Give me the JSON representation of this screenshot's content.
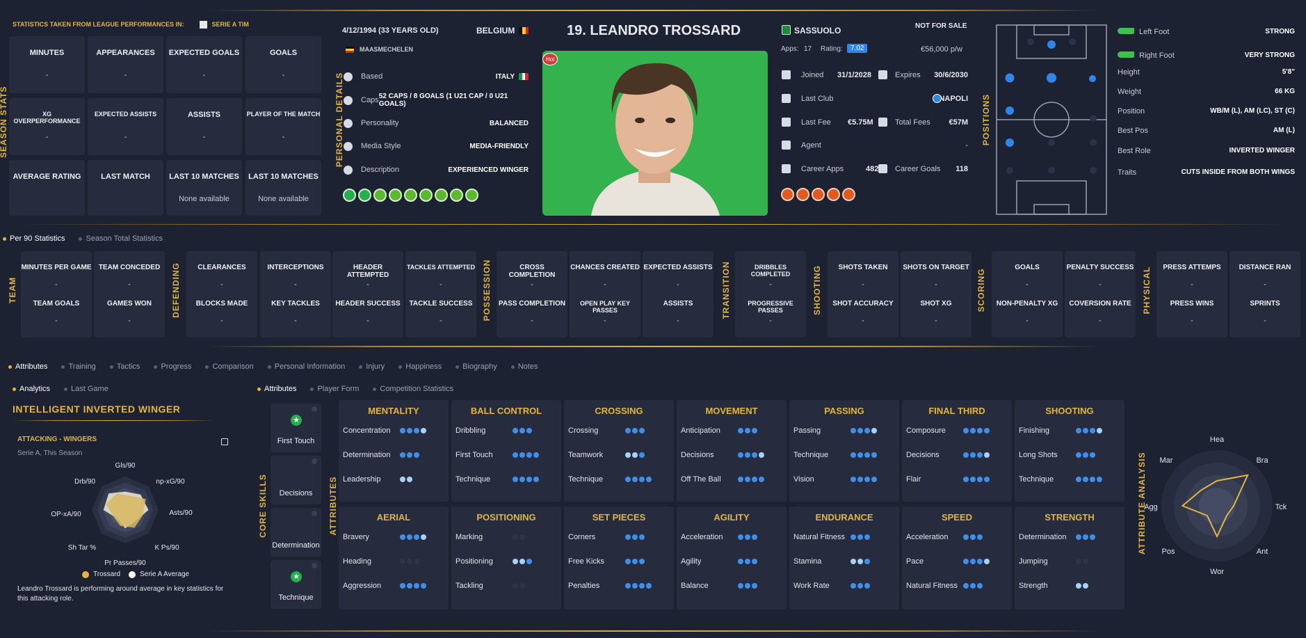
{
  "season": {
    "header": "STATISTICS TAKEN FROM LEAGUE PERFORMANCES IN:",
    "league": "SERIE A TIM",
    "side_label": "SEASON STATS",
    "cards": [
      {
        "title": "MINUTES",
        "value": "-"
      },
      {
        "title": "APPEARANCES",
        "value": "-"
      },
      {
        "title": "EXPECTED GOALS",
        "value": "-"
      },
      {
        "title": "GOALS",
        "value": "-"
      },
      {
        "title": "XG OVERPERFORMANCE",
        "value": "-"
      },
      {
        "title": "EXPECTED ASSISTS",
        "value": "-"
      },
      {
        "title": "ASSISTS",
        "value": "-"
      },
      {
        "title": "PLAYER OF THE MATCH",
        "value": "-"
      },
      {
        "title": "AVERAGE RATING",
        "value": ""
      },
      {
        "title": "LAST MATCH",
        "value": ""
      },
      {
        "title": "LAST 10 MATCHES",
        "value": "None available"
      },
      {
        "title": "LAST 10 MATCHES",
        "value": "None available"
      }
    ]
  },
  "personal": {
    "side_label": "PERSONAL DETAILS",
    "dob": "4/12/1994 (33 YEARS OLD)",
    "nation": "BELGIUM",
    "birthplace": "MAASMECHELEN",
    "rows": [
      {
        "icon": "location-icon",
        "label": "Based",
        "value": "ITALY"
      },
      {
        "icon": "caps-icon",
        "label": "Caps",
        "value": "52 CAPS / 8 GOALS (1 U21 CAP / 0 U21 GOALS)"
      },
      {
        "icon": "personality-icon",
        "label": "Personality",
        "value": "BALANCED"
      },
      {
        "icon": "media-icon",
        "label": "Media Style",
        "value": "MEDIA-FRIENDLY"
      },
      {
        "icon": "description-icon",
        "label": "Description",
        "value": "EXPERIENCED WINGER"
      }
    ]
  },
  "player": {
    "name": "19. LEANDRO TROSSARD",
    "tag": "Hol"
  },
  "club": {
    "name": "SASSUOLO",
    "status": "NOT FOR SALE",
    "apps_label": "Apps:",
    "apps": "17",
    "rating_label": "Rating:",
    "rating": "7.02",
    "wage": "€56,000 p/w",
    "joined_label": "Joined",
    "joined": "31/1/2028",
    "expires_label": "Expires",
    "expires": "30/6/2030",
    "lastclub_label": "Last Club",
    "lastclub": "NAPOLI",
    "lastfee_label": "Last Fee",
    "lastfee": "€5.75M",
    "totalfees_label": "Total Fees",
    "totalfees": "€57M",
    "agent_label": "Agent",
    "agent": "-",
    "careerapps_label": "Career Apps",
    "careerapps": "482",
    "careergoals_label": "Career Goals",
    "careergoals": "118"
  },
  "positions_label": "POSITIONS",
  "foot": [
    {
      "label": "Left Foot",
      "value": "STRONG"
    },
    {
      "label": "Right Foot",
      "value": "VERY STRONG"
    }
  ],
  "info": [
    {
      "label": "Height",
      "value": "5'8\""
    },
    {
      "label": "Weight",
      "value": "66 KG"
    },
    {
      "label": "Position",
      "value": "WB/M (L), AM (LC), ST (C)"
    },
    {
      "label": "Best Pos",
      "value": "AM (L)"
    },
    {
      "label": "Best Role",
      "value": "INVERTED WINGER"
    },
    {
      "label": "Traits",
      "value": "CUTS INSIDE FROM BOTH WINGS"
    }
  ],
  "stats_tabs": [
    "Per 90 Statistics",
    "Season Total Statistics"
  ],
  "stat_groups": [
    {
      "label": "TEAM",
      "cards": [
        [
          "MINUTES PER GAME",
          "TEAM GOALS"
        ],
        [
          "TEAM CONCEDED",
          "GAMES WON"
        ]
      ]
    },
    {
      "label": "DEFENDING",
      "cards": [
        [
          "CLEARANCES",
          "BLOCKS MADE"
        ],
        [
          "INTERCEPTIONS",
          "KEY TACKLES"
        ],
        [
          "HEADER ATTEMPTED",
          "HEADER SUCCESS"
        ],
        [
          "TACKLES ATTEMPTED",
          "TACKLE SUCCESS"
        ]
      ]
    },
    {
      "label": "POSSESSION",
      "cards": [
        [
          "CROSS COMPLETION",
          "PASS COMPLETION"
        ],
        [
          "CHANCES CREATED",
          "OPEN PLAY KEY PASSES"
        ],
        [
          "EXPECTED ASSISTS",
          "ASSISTS"
        ]
      ]
    },
    {
      "label": "TRANSITION",
      "cards": [
        [
          "DRIBBLES COMPLETED",
          "PROGRESSIVE PASSES"
        ]
      ]
    },
    {
      "label": "SHOOTING",
      "cards": [
        [
          "SHOTS TAKEN",
          "SHOT ACCURACY"
        ],
        [
          "SHOTS ON TARGET",
          "SHOT XG"
        ]
      ]
    },
    {
      "label": "SCORING",
      "cards": [
        [
          "GOALS",
          "NON-PENALTY XG"
        ],
        [
          "PENALTY SUCCESS",
          "COVERSION RATE"
        ]
      ]
    },
    {
      "label": "PHYSICAL",
      "cards": [
        [
          "PRESS ATTEMPS",
          "PRESS WINS"
        ],
        [
          "DISTANCE RAN",
          "SPRINTS"
        ]
      ]
    }
  ],
  "stat_dash": "-",
  "main_tabs": [
    "Attributes",
    "Training",
    "Tactics",
    "Progress",
    "Comparison",
    "Personal Information",
    "Injury",
    "Happiness",
    "Biography",
    "Notes"
  ],
  "sub_tabs_left": [
    "Analytics",
    "Last Game"
  ],
  "sub_tabs_right": [
    "Attributes",
    "Player Form",
    "Competition Statistics"
  ],
  "analytics": {
    "role_title": "INTELLIGENT INVERTED WINGER",
    "chart_title": "ATTACKING - WINGERS",
    "chart_sub": "Serie A, This Season",
    "legend_a": "Trossard",
    "legend_b": "Serie A Average",
    "summary": "Leandro Trossard is performing around average in key statistics for this attacking role."
  },
  "core_label": "CORE SKILLS",
  "core_skills": [
    {
      "name": "First Touch",
      "star": true
    },
    {
      "name": "Decisions",
      "star": false
    },
    {
      "name": "Determination",
      "star": false
    },
    {
      "name": "Technique",
      "star": true
    }
  ],
  "attributes_label": "ATTRIBUTES",
  "attr_groups": [
    {
      "title": "MENTALITY",
      "rows": [
        [
          "Concentration",
          [
            2,
            2,
            2,
            1
          ]
        ],
        [
          "Determination",
          [
            2,
            2,
            2
          ]
        ],
        [
          "Leadership",
          [
            1,
            1
          ]
        ]
      ]
    },
    {
      "title": "BALL CONTROL",
      "rows": [
        [
          "Dribbling",
          [
            2,
            2,
            2
          ]
        ],
        [
          "First Touch",
          [
            2,
            2,
            2,
            2
          ]
        ],
        [
          "Technique",
          [
            2,
            2,
            2,
            2
          ]
        ]
      ]
    },
    {
      "title": "CROSSING",
      "rows": [
        [
          "Crossing",
          [
            2,
            2,
            2
          ]
        ],
        [
          "Teamwork",
          [
            1,
            1,
            2
          ]
        ],
        [
          "Technique",
          [
            2,
            2,
            2,
            2
          ]
        ]
      ]
    },
    {
      "title": "MOVEMENT",
      "rows": [
        [
          "Anticipation",
          [
            2,
            2,
            2
          ]
        ],
        [
          "Decisions",
          [
            2,
            2,
            2,
            1
          ]
        ],
        [
          "Off The Ball",
          [
            2,
            2,
            2,
            2
          ]
        ]
      ]
    },
    {
      "title": "PASSING",
      "rows": [
        [
          "Passing",
          [
            2,
            2,
            2,
            1
          ]
        ],
        [
          "Technique",
          [
            2,
            2,
            2,
            2
          ]
        ],
        [
          "Vision",
          [
            2,
            2,
            2,
            2
          ]
        ]
      ]
    },
    {
      "title": "FINAL THIRD",
      "rows": [
        [
          "Composure",
          [
            2,
            2,
            2,
            2
          ]
        ],
        [
          "Decisions",
          [
            2,
            2,
            2,
            1
          ]
        ],
        [
          "Flair",
          [
            2,
            2,
            2,
            2
          ]
        ]
      ]
    },
    {
      "title": "SHOOTING",
      "rows": [
        [
          "Finishing",
          [
            2,
            2,
            2,
            1
          ]
        ],
        [
          "Long Shots",
          [
            2,
            2,
            2
          ]
        ],
        [
          "Technique",
          [
            2,
            2,
            2,
            2
          ]
        ]
      ]
    },
    {
      "title": "AERIAL",
      "rows": [
        [
          "Bravery",
          [
            2,
            2,
            2,
            1
          ]
        ],
        [
          "Heading",
          [
            0,
            0,
            0
          ]
        ],
        [
          "Aggression",
          [
            2,
            2,
            2,
            2
          ]
        ]
      ]
    },
    {
      "title": "POSITIONING",
      "rows": [
        [
          "Marking",
          [
            0,
            0
          ]
        ],
        [
          "Positioning",
          [
            1,
            1,
            2
          ]
        ],
        [
          "Tackling",
          [
            0,
            0
          ]
        ]
      ]
    },
    {
      "title": "SET PIECES",
      "rows": [
        [
          "Corners",
          [
            2,
            2,
            2
          ]
        ],
        [
          "Free Kicks",
          [
            2,
            2,
            2
          ]
        ],
        [
          "Penalties",
          [
            2,
            2,
            2,
            2
          ]
        ]
      ]
    },
    {
      "title": "AGILITY",
      "rows": [
        [
          "Acceleration",
          [
            2,
            2,
            2
          ]
        ],
        [
          "Agility",
          [
            2,
            2,
            2
          ]
        ],
        [
          "Balance",
          [
            2,
            2,
            2
          ]
        ]
      ]
    },
    {
      "title": "ENDURANCE",
      "rows": [
        [
          "Natural Fitness",
          [
            2,
            2,
            2
          ]
        ],
        [
          "Stamina",
          [
            1,
            1,
            2
          ]
        ],
        [
          "Work Rate",
          [
            2,
            2,
            2
          ]
        ]
      ]
    },
    {
      "title": "SPEED",
      "rows": [
        [
          "Acceleration",
          [
            2,
            2,
            2
          ]
        ],
        [
          "Pace",
          [
            2,
            2,
            2,
            1
          ]
        ],
        [
          "Natural Fitness",
          [
            2,
            2,
            2
          ]
        ]
      ]
    },
    {
      "title": "STRENGTH",
      "rows": [
        [
          "Determination",
          [
            2,
            2,
            2
          ]
        ],
        [
          "Jumping",
          [
            0,
            0
          ]
        ],
        [
          "Strength",
          [
            1,
            1
          ]
        ]
      ]
    }
  ],
  "analysis_label": "ATTRIBUTE ANALYSIS",
  "radar_axes": [
    "Hea",
    "Bra",
    "Tck",
    "Ant",
    "Wor",
    "Pos",
    "Agg",
    "Mar"
  ],
  "pizza_axes": [
    "Gls/90",
    "np-xG/90",
    "Asts/90",
    "K Ps/90",
    "Pr Passes/90",
    "Sh Tar %",
    "OP-xA/90",
    "Drb/90"
  ],
  "colors": {
    "accent": "#e2b53f",
    "pip": "#3f8fe8",
    "background": "#1d2233"
  }
}
